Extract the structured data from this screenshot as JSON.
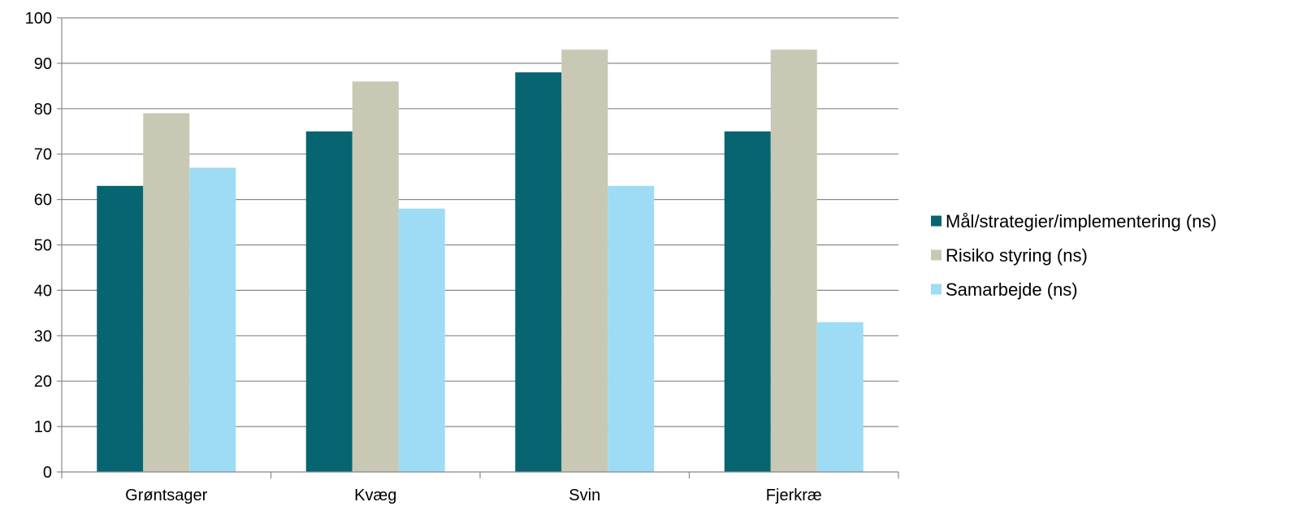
{
  "chart_data": {
    "type": "bar",
    "title": "",
    "xlabel": "",
    "ylabel": "",
    "categories": [
      "Grøntsager",
      "Kvæg",
      "Svin",
      "Fjerkræ"
    ],
    "series": [
      {
        "name": "Mål/strategier/implementering (ns)",
        "color": "#066570",
        "values": [
          63,
          75,
          88,
          75
        ]
      },
      {
        "name": "Risiko styring (ns)",
        "color": "#c8c8b4",
        "values": [
          79,
          86,
          93,
          93
        ]
      },
      {
        "name": "Samarbejde (ns)",
        "color": "#9edcf5",
        "values": [
          67,
          58,
          63,
          33
        ]
      }
    ],
    "ylim": [
      0,
      100
    ],
    "yticks": [
      "0",
      "10",
      "20",
      "30",
      "40",
      "50",
      "60",
      "70",
      "80",
      "90",
      "100"
    ],
    "grid": true,
    "legend_position": "right"
  }
}
